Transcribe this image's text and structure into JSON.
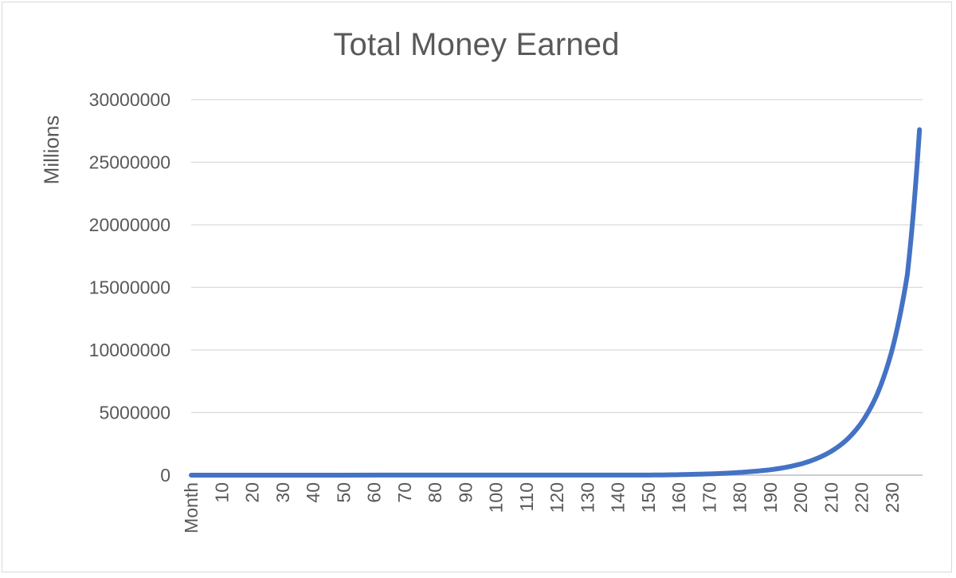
{
  "chart_data": {
    "type": "line",
    "title": "Total Money Earned",
    "ylabel": "Millions",
    "xlabel": "",
    "ylim": [
      0,
      30000000
    ],
    "y_ticks": [
      "0",
      "5000000",
      "10000000",
      "15000000",
      "20000000",
      "25000000",
      "30000000"
    ],
    "x_first_label": "Month",
    "x_tick_labels": [
      "10",
      "20",
      "30",
      "40",
      "50",
      "60",
      "70",
      "80",
      "90",
      "100",
      "110",
      "120",
      "130",
      "140",
      "150",
      "160",
      "170",
      "180",
      "190",
      "200",
      "210",
      "220",
      "230"
    ],
    "xlim": [
      0,
      240
    ],
    "grid": true,
    "legend": "none",
    "line_color": "#4472c4",
    "series": [
      {
        "x": [
          0,
          150,
          160,
          165,
          170,
          175,
          180,
          185,
          190,
          195,
          200,
          205,
          210,
          215,
          220,
          225,
          230,
          235,
          239
        ],
        "values": [
          0,
          10000,
          40000,
          70000,
          100000,
          150000,
          220000,
          310000,
          430000,
          620000,
          890000,
          1300000,
          1900000,
          2800000,
          4200000,
          6400000,
          10000000,
          16000000,
          27600000
        ]
      }
    ]
  }
}
